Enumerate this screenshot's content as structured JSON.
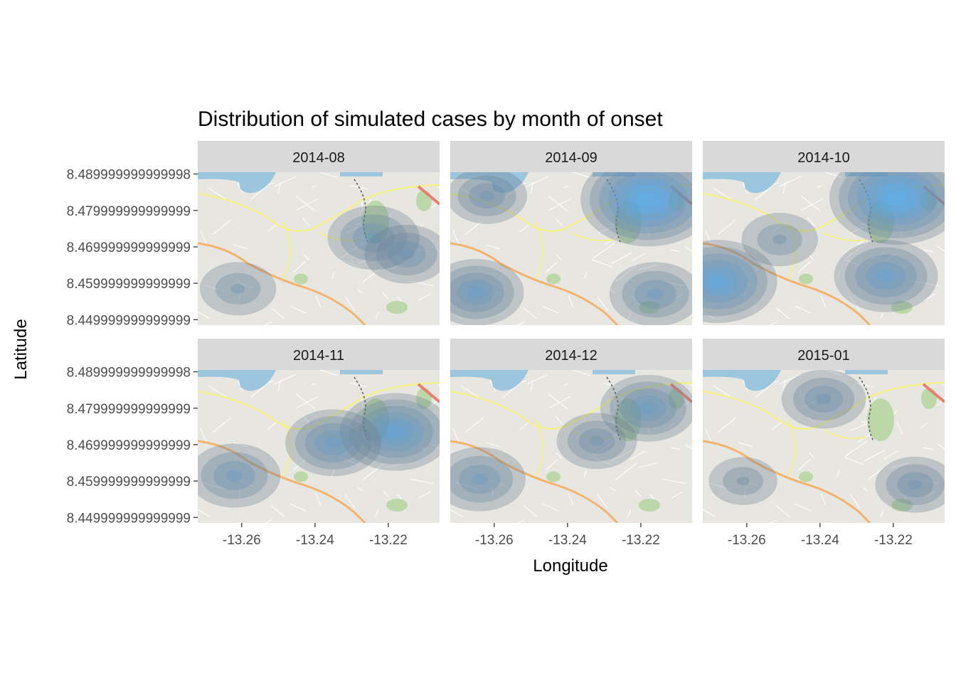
{
  "chart_data": {
    "type": "heatmap",
    "subtype": "faceted density contours over street map",
    "title": "Distribution of simulated cases by month of onset",
    "xlabel": "Longitude",
    "ylabel": "Latitude",
    "xlim": [
      -13.272,
      -13.206
    ],
    "ylim": [
      8.4485,
      8.4905
    ],
    "x_ticks": [
      -13.26,
      -13.24,
      -13.22
    ],
    "x_tick_labels": [
      "-13.26",
      "-13.24",
      "-13.22"
    ],
    "y_ticks": [
      8.49,
      8.48,
      8.47,
      8.46,
      8.45
    ],
    "y_tick_labels": [
      "8.489999999999998",
      "8.479999999999999",
      "8.469999999999999",
      "8.459999999999999",
      "8.449999999999999"
    ],
    "colors": {
      "low_density": "#6b7d8f",
      "high_density": "#56b1f7",
      "strip_fill": "#d9d9d9",
      "map_background": "#e8e6e1",
      "water": "#9cc6dd",
      "park": "#bcd8a8",
      "road_major": "#f2b36c",
      "road_secondary": "#f3f08a",
      "road_primary": "#e87f70"
    },
    "facets": [
      {
        "name": "2014-08",
        "density_peaks": [
          {
            "lon": -13.224,
            "lat": 8.4725,
            "weight": 0.45
          },
          {
            "lon": -13.215,
            "lat": 8.468,
            "weight": 0.35
          },
          {
            "lon": -13.261,
            "lat": 8.4585,
            "weight": 0.25
          }
        ]
      },
      {
        "name": "2014-09",
        "density_peaks": [
          {
            "lon": -13.218,
            "lat": 8.483,
            "weight": 1.0
          },
          {
            "lon": -13.265,
            "lat": 8.4575,
            "weight": 0.5
          },
          {
            "lon": -13.216,
            "lat": 8.457,
            "weight": 0.45
          },
          {
            "lon": -13.262,
            "lat": 8.484,
            "weight": 0.3
          }
        ]
      },
      {
        "name": "2014-10",
        "density_peaks": [
          {
            "lon": -13.219,
            "lat": 8.4835,
            "weight": 1.0
          },
          {
            "lon": -13.222,
            "lat": 8.462,
            "weight": 0.6
          },
          {
            "lon": -13.268,
            "lat": 8.4605,
            "weight": 0.8
          },
          {
            "lon": -13.251,
            "lat": 8.472,
            "weight": 0.25
          }
        ]
      },
      {
        "name": "2014-11",
        "density_peaks": [
          {
            "lon": -13.218,
            "lat": 8.4735,
            "weight": 0.7
          },
          {
            "lon": -13.235,
            "lat": 8.4705,
            "weight": 0.5
          },
          {
            "lon": -13.262,
            "lat": 8.4615,
            "weight": 0.45
          }
        ]
      },
      {
        "name": "2014-12",
        "density_peaks": [
          {
            "lon": -13.218,
            "lat": 8.48,
            "weight": 0.5
          },
          {
            "lon": -13.264,
            "lat": 8.4605,
            "weight": 0.45
          },
          {
            "lon": -13.232,
            "lat": 8.471,
            "weight": 0.3
          }
        ]
      },
      {
        "name": "2015-01",
        "density_peaks": [
          {
            "lon": -13.239,
            "lat": 8.4825,
            "weight": 0.35
          },
          {
            "lon": -13.214,
            "lat": 8.459,
            "weight": 0.3
          },
          {
            "lon": -13.261,
            "lat": 8.46,
            "weight": 0.15
          }
        ]
      }
    ]
  }
}
